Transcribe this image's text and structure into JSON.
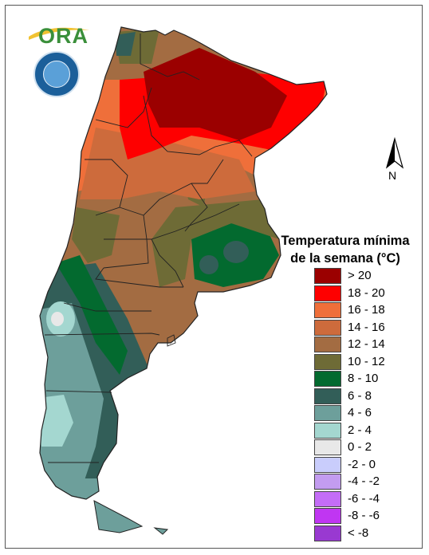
{
  "logo": {
    "text": "ORA"
  },
  "north_arrow": {
    "label": "N"
  },
  "legend": {
    "title_line1": "Temperatura mínima",
    "title_line2": "de la semana (°C)",
    "classes": [
      {
        "label": "> 20",
        "color": "#9b0000"
      },
      {
        "label": "18 - 20",
        "color": "#fe0000"
      },
      {
        "label": "16 - 18",
        "color": "#ef6f3a"
      },
      {
        "label": "14 - 16",
        "color": "#cd6b3c"
      },
      {
        "label": "12 - 14",
        "color": "#a36c42"
      },
      {
        "label": "10 - 12",
        "color": "#6e6b36"
      },
      {
        "label": "8 - 10",
        "color": "#036a2f"
      },
      {
        "label": "6 - 8",
        "color": "#325e58"
      },
      {
        "label": "4 - 6",
        "color": "#6d9f9b"
      },
      {
        "label": "2 - 4",
        "color": "#a4d7d0"
      },
      {
        "label": "0 - 2",
        "color": "#e8e8e8"
      },
      {
        "label": "-2 - 0",
        "color": "#c9cdfc"
      },
      {
        "label": "-4 - -2",
        "color": "#c39cf0"
      },
      {
        "label": "-6 - -4",
        "color": "#c46df7"
      },
      {
        "label": "-8 - -6",
        "color": "#c036f2"
      },
      {
        "label": "< -8",
        "color": "#9939d1"
      }
    ]
  }
}
